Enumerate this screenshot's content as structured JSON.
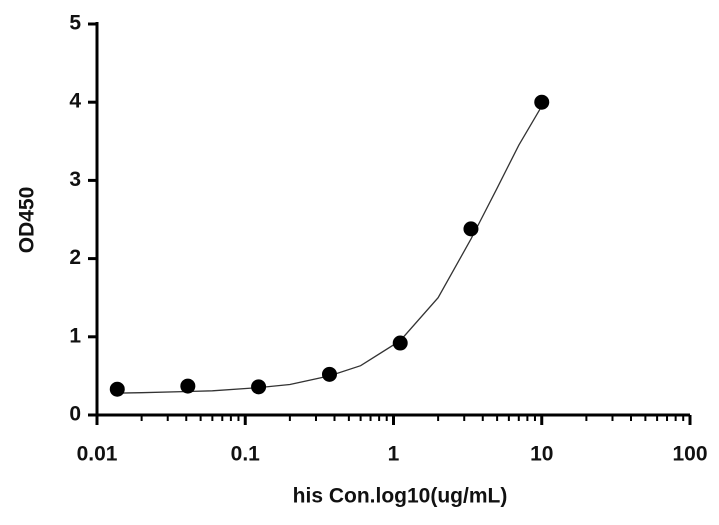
{
  "chart_data": {
    "type": "scatter",
    "log_x": true,
    "x_label": "his Con.log10(ug/mL)",
    "y_label": "OD450",
    "x": [
      0.0137,
      0.041,
      0.123,
      0.37,
      1.11,
      3.33,
      10
    ],
    "values": [
      0.33,
      0.37,
      0.36,
      0.52,
      0.92,
      2.38,
      4.0
    ],
    "color": "#000000",
    "fit": {
      "x": [
        0.0137,
        0.02,
        0.041,
        0.06,
        0.123,
        0.2,
        0.37,
        0.6,
        1.11,
        2,
        3.33,
        5,
        7,
        10
      ],
      "values": [
        0.28,
        0.285,
        0.3,
        0.31,
        0.35,
        0.39,
        0.5,
        0.63,
        0.95,
        1.5,
        2.25,
        2.9,
        3.45,
        3.95
      ]
    },
    "xlim": [
      0.01,
      100
    ],
    "xticks": [
      0.01,
      0.1,
      1,
      10,
      100
    ],
    "xminorticks": [
      0.02,
      0.03,
      0.04,
      0.05,
      0.06,
      0.07,
      0.08,
      0.09,
      0.2,
      0.3,
      0.4,
      0.5,
      0.6,
      0.7,
      0.8,
      0.9,
      2,
      3,
      4,
      5,
      6,
      7,
      8,
      9,
      20,
      30,
      40,
      50,
      60,
      70,
      80,
      90
    ],
    "ylim": [
      0,
      5
    ],
    "yticks": [
      0,
      1,
      2,
      3,
      4,
      5
    ]
  }
}
